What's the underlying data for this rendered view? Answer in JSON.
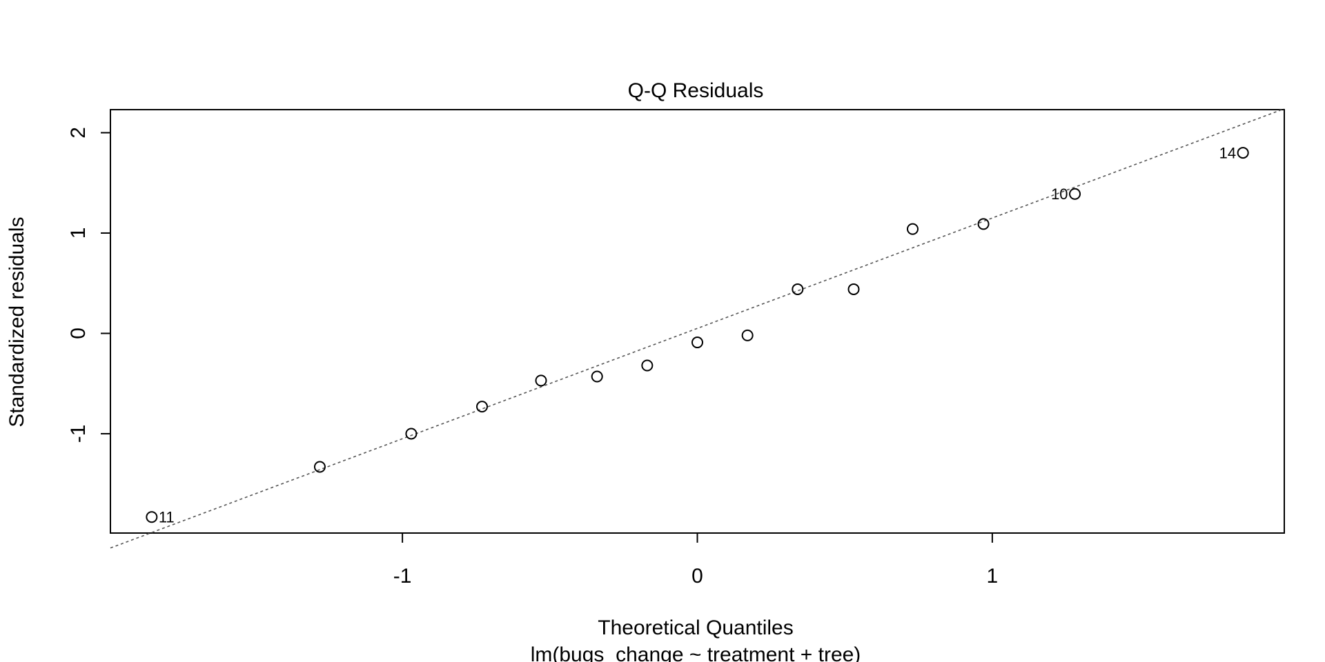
{
  "chart_data": {
    "type": "scatter",
    "title": "Q-Q Residuals",
    "xlabel": "Theoretical Quantiles",
    "subtitle": "lm(bugs_change ~ treatment + tree)",
    "ylabel": "Standardized residuals",
    "xlim": [
      -1.99,
      1.99
    ],
    "ylim": [
      -1.99,
      2.23
    ],
    "xticks": [
      -1,
      0,
      1
    ],
    "xtick_labels": [
      "-1",
      "0",
      "1"
    ],
    "yticks": [
      -1,
      0,
      1,
      2
    ],
    "ytick_labels": [
      "-1",
      "0",
      "1",
      "2"
    ],
    "grid": false,
    "reference_line": {
      "slope": 1.1,
      "intercept": 0.05,
      "style": "dotted"
    },
    "points": [
      {
        "x": -1.85,
        "y": -1.83,
        "label": "11"
      },
      {
        "x": -1.28,
        "y": -1.33,
        "label": ""
      },
      {
        "x": -0.97,
        "y": -1.0,
        "label": ""
      },
      {
        "x": -0.73,
        "y": -0.73,
        "label": ""
      },
      {
        "x": -0.53,
        "y": -0.47,
        "label": ""
      },
      {
        "x": -0.34,
        "y": -0.43,
        "label": ""
      },
      {
        "x": -0.17,
        "y": -0.32,
        "label": ""
      },
      {
        "x": 0.0,
        "y": -0.09,
        "label": ""
      },
      {
        "x": 0.17,
        "y": -0.02,
        "label": ""
      },
      {
        "x": 0.34,
        "y": 0.44,
        "label": ""
      },
      {
        "x": 0.53,
        "y": 0.44,
        "label": ""
      },
      {
        "x": 0.73,
        "y": 1.04,
        "label": ""
      },
      {
        "x": 0.97,
        "y": 1.09,
        "label": ""
      },
      {
        "x": 1.28,
        "y": 1.39,
        "label": "10"
      },
      {
        "x": 1.85,
        "y": 1.8,
        "label": "14"
      }
    ]
  }
}
